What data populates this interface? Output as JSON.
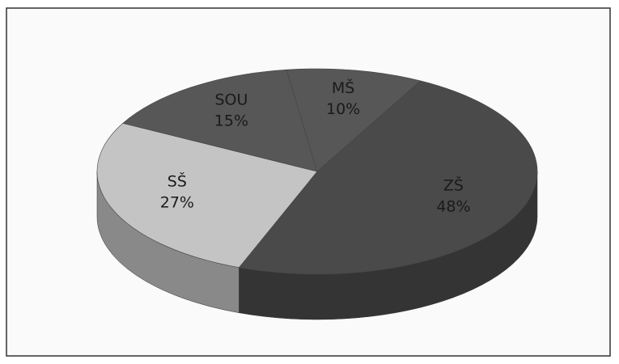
{
  "chart_data": {
    "type": "pie",
    "style": "3d",
    "categories": [
      "ZŠ",
      "SŠ",
      "SOU",
      "MŠ"
    ],
    "values": [
      48,
      27,
      15,
      10
    ],
    "value_labels": [
      "48%",
      "27%",
      "15%",
      "10%"
    ],
    "colors": [
      "#4a4a4a",
      "#c4c4c4",
      "#575757",
      "#575757"
    ]
  }
}
